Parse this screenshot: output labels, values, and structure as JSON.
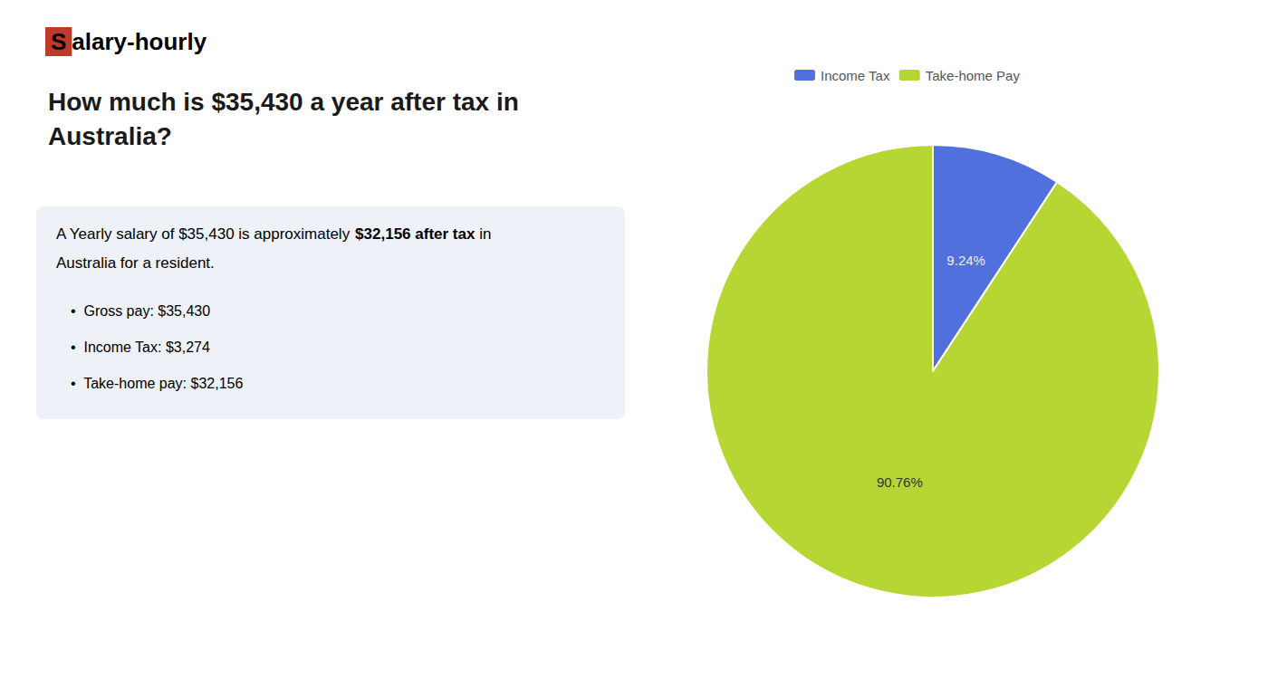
{
  "chart_data": {
    "type": "pie",
    "title": "How much is $35,430 a year after tax in\nAustralia?",
    "logo": [
      {
        "text": "S",
        "color": "#c0392b"
      },
      {
        "text": "alary-hourly"
      }
    ],
    "annotations": [
      [
        {
          "text": "A Yearly salary of $35,430 is approximately "
        },
        {
          "text": "$32,156 after tax",
          "color": "#c0392b"
        },
        {
          "text": " in"
        }
      ],
      [
        {
          "text": "Australia for a resident."
        }
      ],
      [
        {
          "text": "•  Gross pay: $35,430"
        }
      ],
      [
        {
          "text": "•  Income Tax: $3,274"
        }
      ],
      [
        {
          "text": "•  Take-home pay: $32,156"
        }
      ]
    ],
    "categories": [
      "Income Tax",
      "Take-home Pay"
    ],
    "values": [
      9.24,
      90.76
    ],
    "value_labels": [
      "9.24%",
      "90.76%"
    ],
    "data_labels": true,
    "legend": "top"
  }
}
